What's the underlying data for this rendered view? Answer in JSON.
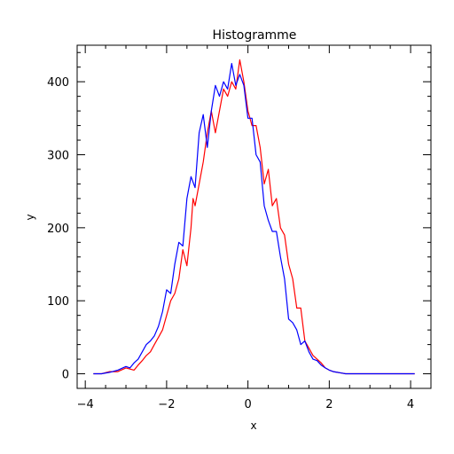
{
  "chart_data": {
    "type": "line",
    "title": "Histogramme",
    "xlabel": "x",
    "ylabel": "y",
    "xlim": [
      -4.2,
      4.5
    ],
    "ylim": [
      -20,
      450
    ],
    "grid": false,
    "x_ticks": [
      -4,
      -2,
      0,
      2,
      4
    ],
    "x_tick_labels": [
      "−4",
      "−2",
      "0",
      "2",
      "4"
    ],
    "y_ticks": [
      0,
      100,
      200,
      300,
      400
    ],
    "y_tick_labels": [
      "0",
      "100",
      "200",
      "300",
      "400"
    ],
    "series": [
      {
        "color": "#ff0000",
        "x": [
          -3.8,
          -3.6,
          -3.4,
          -3.2,
          -3.0,
          -2.8,
          -2.7,
          -2.6,
          -2.5,
          -2.4,
          -2.3,
          -2.2,
          -2.1,
          -2.0,
          -1.9,
          -1.8,
          -1.7,
          -1.6,
          -1.5,
          -1.4,
          -1.35,
          -1.3,
          -1.2,
          -1.1,
          -1.0,
          -0.9,
          -0.8,
          -0.7,
          -0.6,
          -0.5,
          -0.4,
          -0.3,
          -0.2,
          -0.1,
          0.0,
          0.1,
          0.2,
          0.3,
          0.4,
          0.5,
          0.6,
          0.7,
          0.8,
          0.9,
          1.0,
          1.1,
          1.2,
          1.3,
          1.4,
          1.5,
          1.6,
          1.7,
          1.8,
          1.9,
          2.0,
          2.1,
          2.2,
          2.3,
          2.4,
          2.6,
          2.8,
          3.0,
          3.2,
          3.5,
          3.8,
          4.1
        ],
        "y": [
          0,
          0,
          3,
          3,
          8,
          5,
          12,
          18,
          25,
          30,
          40,
          50,
          60,
          80,
          100,
          110,
          130,
          170,
          148,
          200,
          240,
          230,
          260,
          290,
          330,
          360,
          330,
          360,
          390,
          380,
          400,
          390,
          430,
          400,
          360,
          340,
          340,
          310,
          260,
          280,
          230,
          240,
          200,
          190,
          150,
          130,
          90,
          90,
          45,
          35,
          25,
          20,
          15,
          8,
          5,
          3,
          2,
          1,
          0,
          0,
          0,
          0,
          0,
          0,
          0,
          0
        ]
      },
      {
        "color": "#0000ff",
        "x": [
          -3.8,
          -3.6,
          -3.4,
          -3.2,
          -3.0,
          -2.9,
          -2.8,
          -2.7,
          -2.6,
          -2.5,
          -2.4,
          -2.3,
          -2.2,
          -2.1,
          -2.0,
          -1.9,
          -1.8,
          -1.7,
          -1.6,
          -1.5,
          -1.4,
          -1.3,
          -1.2,
          -1.1,
          -1.0,
          -0.9,
          -0.8,
          -0.7,
          -0.6,
          -0.5,
          -0.4,
          -0.3,
          -0.2,
          -0.1,
          0.0,
          0.1,
          0.2,
          0.3,
          0.4,
          0.5,
          0.6,
          0.7,
          0.8,
          0.9,
          1.0,
          1.1,
          1.2,
          1.3,
          1.4,
          1.5,
          1.6,
          1.7,
          1.8,
          1.9,
          2.0,
          2.1,
          2.2,
          2.3,
          2.4,
          2.6,
          2.8,
          3.0,
          3.2,
          3.5,
          3.8,
          4.1
        ],
        "y": [
          0,
          0,
          2,
          5,
          10,
          8,
          15,
          20,
          30,
          40,
          45,
          52,
          65,
          85,
          115,
          110,
          150,
          180,
          175,
          240,
          270,
          255,
          330,
          355,
          310,
          360,
          395,
          380,
          400,
          390,
          425,
          395,
          410,
          395,
          350,
          350,
          300,
          290,
          230,
          210,
          195,
          195,
          160,
          130,
          75,
          70,
          60,
          40,
          45,
          30,
          20,
          18,
          12,
          8,
          5,
          3,
          2,
          1,
          0,
          0,
          0,
          0,
          0,
          0,
          0,
          0
        ]
      }
    ]
  }
}
